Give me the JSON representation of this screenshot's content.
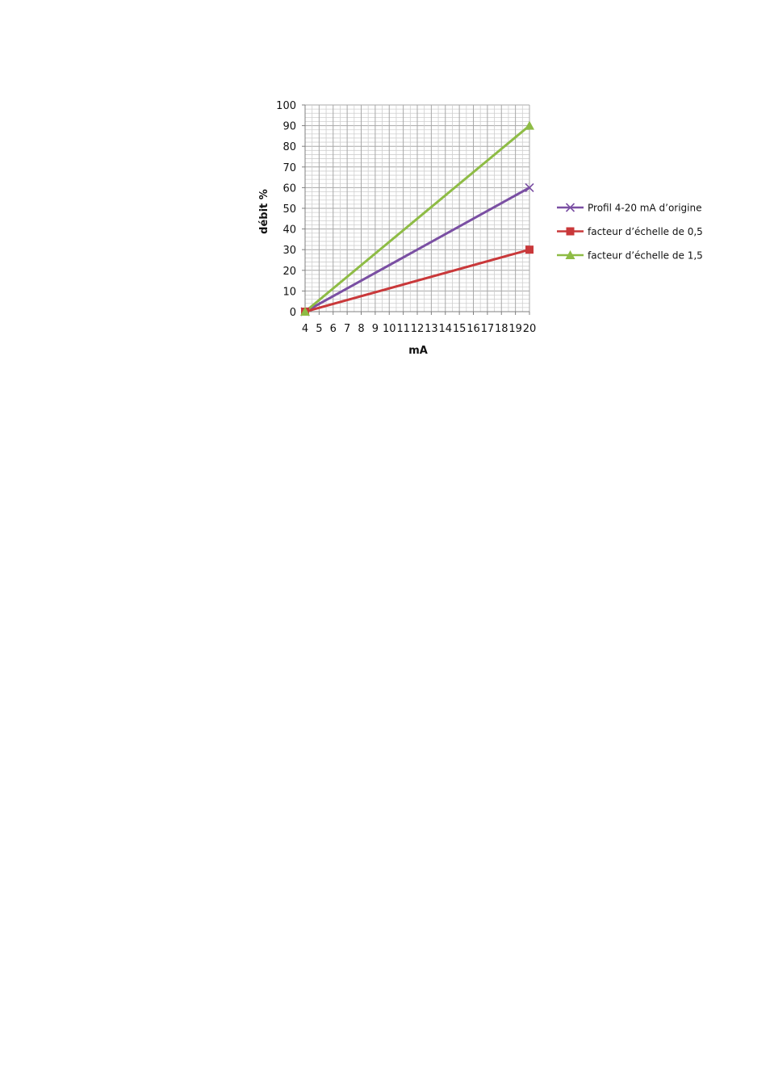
{
  "chart_data": {
    "type": "line",
    "title": "",
    "xlabel": "mA",
    "ylabel": "débit %",
    "x": [
      4,
      20
    ],
    "x_ticks": [
      4,
      5,
      6,
      7,
      8,
      9,
      10,
      11,
      12,
      13,
      14,
      15,
      16,
      17,
      18,
      19,
      20
    ],
    "y_ticks": [
      0,
      10,
      20,
      30,
      40,
      50,
      60,
      70,
      80,
      90,
      100
    ],
    "xlim": [
      4,
      20
    ],
    "ylim": [
      0,
      100
    ],
    "grid": true,
    "legend_position": "right",
    "series": [
      {
        "name": "Profil 4-20 mA  d’origine",
        "values": [
          0,
          60
        ],
        "color": "#7a4fa3",
        "marker": "x"
      },
      {
        "name": "facteur d’échelle de 0,5",
        "values": [
          0,
          30
        ],
        "color": "#c9383a",
        "marker": "square"
      },
      {
        "name": "facteur d’échelle de 1,5",
        "values": [
          0,
          90
        ],
        "color": "#8ebc45",
        "marker": "triangle"
      }
    ]
  }
}
